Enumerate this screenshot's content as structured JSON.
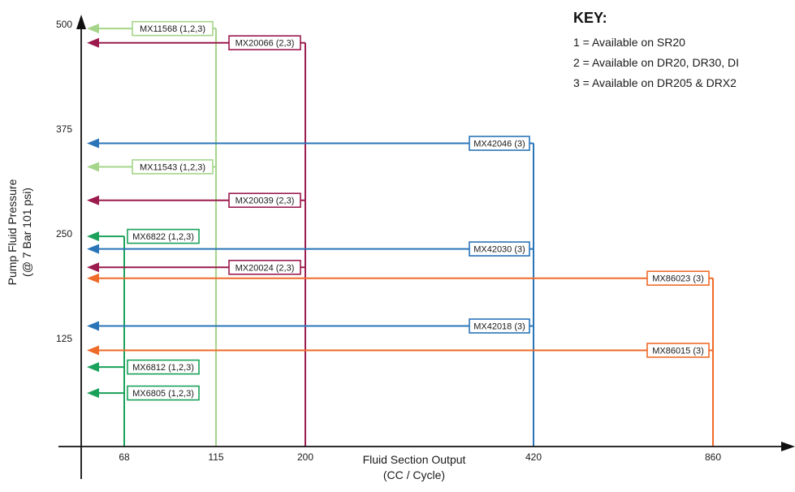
{
  "chart_data": {
    "type": "line",
    "xlabel": [
      "Fluid Section Output",
      "(CC / Cycle)"
    ],
    "ylabel": [
      "Pump Fluid Pressure",
      "(@ 7 Bar 101 psi)"
    ],
    "x_ticks": [
      68,
      115,
      200,
      420,
      860
    ],
    "y_ticks": [
      125,
      250,
      375,
      500
    ],
    "legend_position": "top-right",
    "key": {
      "title": "KEY:",
      "lines": [
        "1 = Available on SR20",
        "2 = Available on DR20, DR30, DI",
        "3 = Available on DR205 & DRX2"
      ]
    },
    "colors": {
      "light_green": "#a5d58a",
      "green": "#1aa15a",
      "maroon": "#9b1b4e",
      "blue": "#2a74b8",
      "orange": "#ef6b2a"
    },
    "series": [
      {
        "name": "MX11568 (1,2,3)",
        "output": 115,
        "pressure": 495,
        "color": "light_green"
      },
      {
        "name": "MX20066 (2,3)",
        "output": 200,
        "pressure": 478,
        "color": "maroon"
      },
      {
        "name": "MX42046 (3)",
        "output": 420,
        "pressure": 358,
        "color": "blue"
      },
      {
        "name": "MX11543 (1,2,3)",
        "output": 115,
        "pressure": 330,
        "color": "light_green"
      },
      {
        "name": "MX20039 (2,3)",
        "output": 200,
        "pressure": 290,
        "color": "maroon"
      },
      {
        "name": "MX6822 (1,2,3)",
        "output": 68,
        "pressure": 247,
        "color": "green"
      },
      {
        "name": "MX42030 (3)",
        "output": 420,
        "pressure": 232,
        "color": "blue"
      },
      {
        "name": "MX20024 (2,3)",
        "output": 200,
        "pressure": 210,
        "color": "maroon"
      },
      {
        "name": "MX86023 (3)",
        "output": 860,
        "pressure": 197,
        "color": "orange"
      },
      {
        "name": "MX42018 (3)",
        "output": 420,
        "pressure": 140,
        "color": "blue"
      },
      {
        "name": "MX86015 (3)",
        "output": 860,
        "pressure": 111,
        "color": "orange"
      },
      {
        "name": "MX6812 (1,2,3)",
        "output": 68,
        "pressure": 91,
        "color": "green"
      },
      {
        "name": "MX6805 (1,2,3)",
        "output": 68,
        "pressure": 60,
        "color": "green"
      }
    ]
  }
}
